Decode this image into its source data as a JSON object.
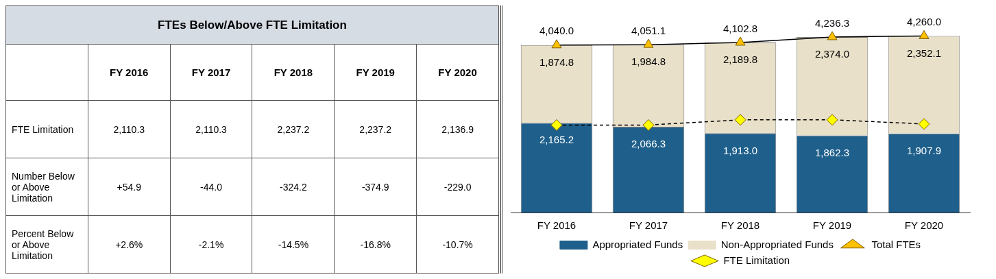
{
  "chart_data": [
    {
      "type": "other",
      "title": "FTEs Below/Above FTE Limitation",
      "categories": [
        "FY 2016",
        "FY 2017",
        "FY 2018",
        "FY 2019",
        "FY 2020"
      ],
      "y_categories": [
        "FTE Limitation",
        "Number Below or Above Limitation",
        "Percent Below or Above Limitation"
      ],
      "cell_labels": [
        [
          "2,110.3",
          "2,110.3",
          "2,237.2",
          "2,237.2",
          "2,136.9"
        ],
        [
          "+54.9",
          "-44.0",
          "-324.2",
          "-374.9",
          "-229.0"
        ],
        [
          "+2.6%",
          "-2.1%",
          "-14.5%",
          "-16.8%",
          "-10.7%"
        ]
      ]
    },
    {
      "type": "bar",
      "stacked": true,
      "categories": [
        "FY 2016",
        "FY 2017",
        "FY 2018",
        "FY 2019",
        "FY 2020"
      ],
      "tick_labels": "x",
      "grid": false,
      "legend": "bottom",
      "series": [
        {
          "name": "Appropriated Funds",
          "color": "#1f5f8b",
          "values": [
            2165.2,
            2066.3,
            1913.0,
            1862.3,
            1907.9
          ],
          "value_labels": [
            "2,165.2",
            "2,066.3",
            "1,913.0",
            "1,862.3",
            "1,907.9"
          ]
        },
        {
          "name": "Non-Appropriated Funds",
          "color": "#e8e0c8",
          "values": [
            1874.8,
            1984.8,
            2189.8,
            2374.0,
            2352.1
          ],
          "value_labels": [
            "1,874.8",
            "1,984.8",
            "2,189.8",
            "2,374.0",
            "2,352.1"
          ]
        },
        {
          "name": "Total FTEs",
          "type": "line",
          "color": "#000000",
          "colors": [
            "#ffc000",
            "#ffc000",
            "#ffc000",
            "#ffc000",
            "#ffc000"
          ],
          "marker": "triangle",
          "line_style": "solid",
          "values": [
            4040.0,
            4051.1,
            4102.8,
            4236.3,
            4260.0
          ],
          "value_labels": [
            "4,040.0",
            "4,051.1",
            "4,102.8",
            "4,236.3",
            "4,260.0"
          ]
        },
        {
          "name": "FTE Limitation",
          "type": "line",
          "color": "#000000",
          "colors": [
            "#ffff00",
            "#ffff00",
            "#ffff00",
            "#ffff00",
            "#ffff00"
          ],
          "marker": "diamond",
          "line_style": "dashed",
          "values": [
            2110.3,
            2110.3,
            2237.2,
            2237.2,
            2136.9
          ]
        }
      ]
    }
  ]
}
